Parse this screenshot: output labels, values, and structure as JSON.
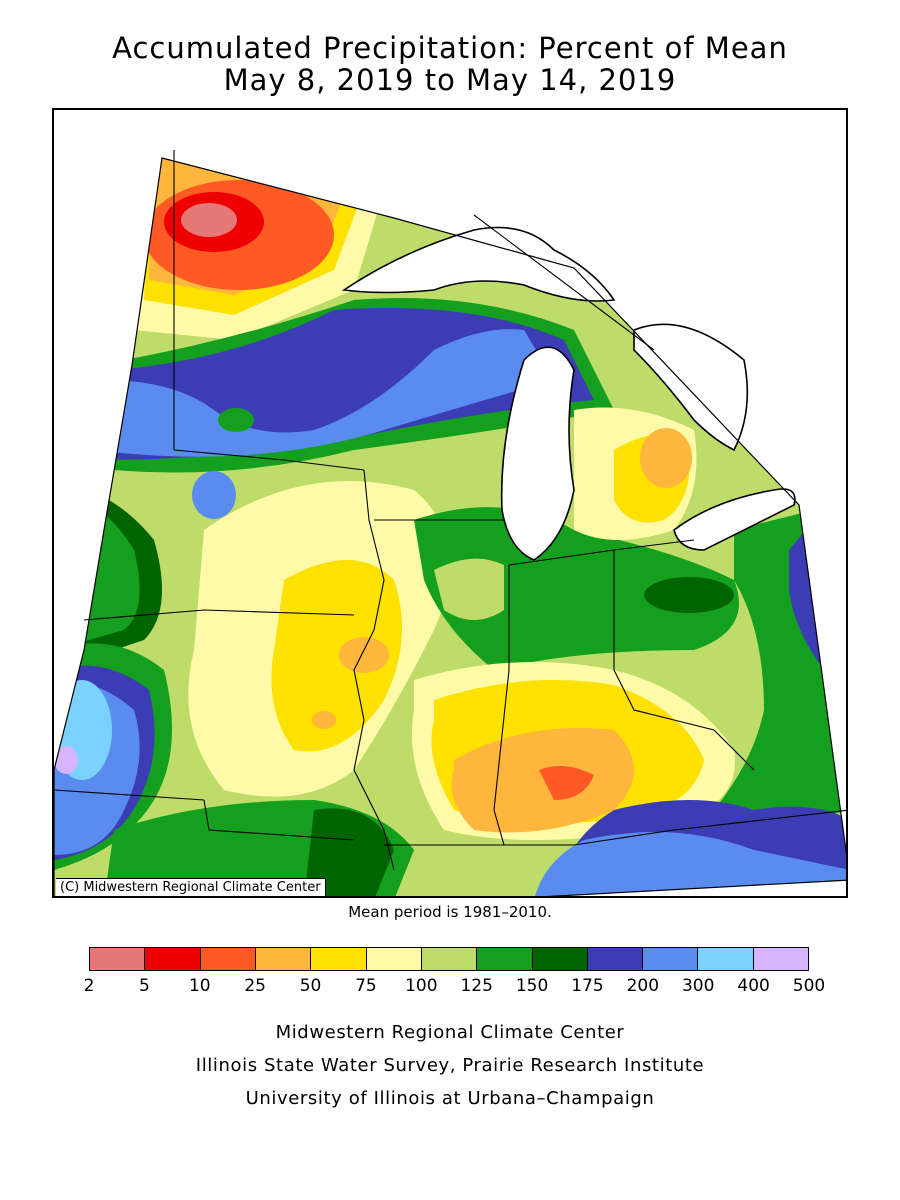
{
  "title": {
    "line1": "Accumulated Precipitation: Percent of Mean",
    "line2": "May 8, 2019 to May 14, 2019"
  },
  "map": {
    "copyright": "(C) Midwestern Regional Climate Center",
    "mean_period": "Mean period is 1981–2010."
  },
  "legend": {
    "colors": [
      "#e67878",
      "#ee0000",
      "#ff5a24",
      "#ffb63c",
      "#ffe100",
      "#fffaa8",
      "#bedc6a",
      "#14a01e",
      "#006400",
      "#3c3cb4",
      "#5a8cf0",
      "#7cd2ff",
      "#d7b4ff"
    ],
    "labels": [
      "2",
      "5",
      "10",
      "25",
      "50",
      "75",
      "100",
      "125",
      "150",
      "175",
      "200",
      "300",
      "400",
      "500"
    ]
  },
  "credits": {
    "line1": "Midwestern Regional Climate Center",
    "line2": "Illinois State Water Survey, Prairie Research Institute",
    "line3": "University of Illinois at Urbana–Champaign"
  }
}
